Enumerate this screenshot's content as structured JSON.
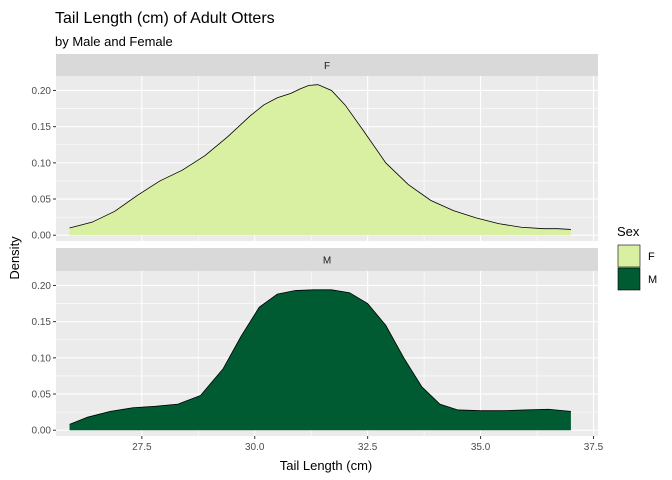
{
  "chart_data": {
    "type": "area",
    "title": "Tail Length (cm) of Adult Otters",
    "subtitle": "by Male and Female",
    "xlabel": "Tail Length (cm)",
    "ylabel": "Density",
    "xlim": [
      25.6,
      37.6
    ],
    "ylim": [
      -0.008,
      0.22
    ],
    "x_ticks": [
      27.5,
      30.0,
      32.5,
      35.0,
      37.5
    ],
    "x_tick_labels": [
      "27.5",
      "30.0",
      "32.5",
      "35.0",
      "37.5"
    ],
    "y_ticks": [
      0.0,
      0.05,
      0.1,
      0.15,
      0.2
    ],
    "y_tick_labels": [
      "0.00",
      "0.05",
      "0.10",
      "0.15",
      "0.20"
    ],
    "grid": true,
    "legend": {
      "title": "Sex",
      "position": "right",
      "entries": [
        {
          "label": "F",
          "color": "#d9f0a3"
        },
        {
          "label": "M",
          "color": "#005a32"
        }
      ]
    },
    "facets": [
      {
        "strip": "F",
        "color": "#d9f0a3",
        "x": [
          25.9,
          26.4,
          26.9,
          27.4,
          27.9,
          28.4,
          28.9,
          29.4,
          29.9,
          30.2,
          30.5,
          30.8,
          31.0,
          31.2,
          31.4,
          31.7,
          32.0,
          32.4,
          32.9,
          33.4,
          33.9,
          34.4,
          34.9,
          35.4,
          35.9,
          36.4,
          36.7,
          37.0
        ],
        "y": [
          0.01,
          0.018,
          0.033,
          0.055,
          0.075,
          0.09,
          0.11,
          0.136,
          0.165,
          0.18,
          0.19,
          0.196,
          0.202,
          0.207,
          0.208,
          0.2,
          0.18,
          0.145,
          0.1,
          0.07,
          0.048,
          0.034,
          0.024,
          0.016,
          0.011,
          0.009,
          0.009,
          0.008
        ]
      },
      {
        "strip": "M",
        "color": "#005a32",
        "x": [
          25.9,
          26.3,
          26.8,
          27.3,
          27.8,
          28.3,
          28.8,
          29.3,
          29.7,
          30.1,
          30.5,
          30.9,
          31.3,
          31.7,
          32.1,
          32.5,
          32.9,
          33.3,
          33.7,
          34.1,
          34.5,
          35.0,
          35.5,
          36.0,
          36.5,
          37.0
        ],
        "y": [
          0.008,
          0.018,
          0.026,
          0.031,
          0.033,
          0.036,
          0.048,
          0.085,
          0.13,
          0.17,
          0.188,
          0.193,
          0.194,
          0.194,
          0.19,
          0.175,
          0.145,
          0.1,
          0.06,
          0.036,
          0.028,
          0.027,
          0.027,
          0.028,
          0.029,
          0.026
        ]
      }
    ]
  }
}
